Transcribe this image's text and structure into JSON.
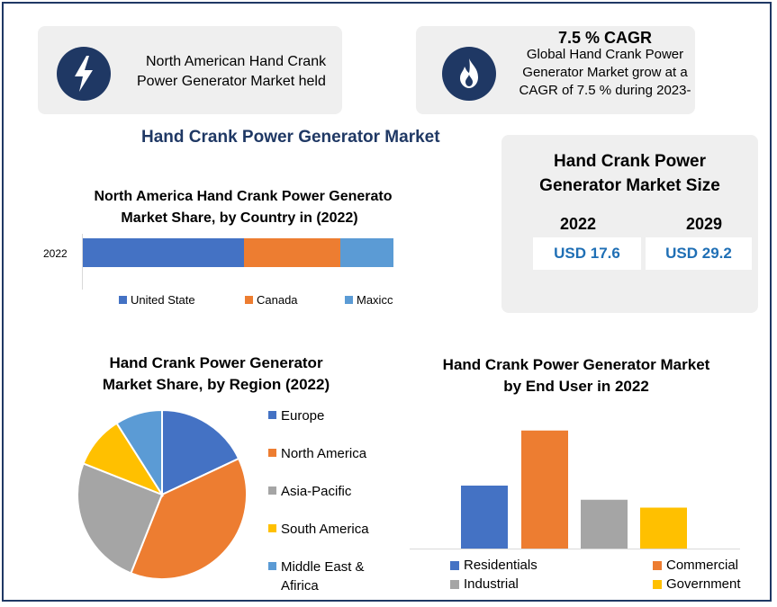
{
  "cards": {
    "north_america": {
      "text_line1": "North American Hand Crank",
      "text_line2": "Power Generator Market held",
      "icon": "lightning-bolt-icon"
    },
    "cagr": {
      "title": "7.5 % CAGR",
      "line1": "Global Hand Crank Power",
      "line2": "Generator Market grow at a",
      "line3": "CAGR of 7.5 % during 2023-",
      "icon": "flame-icon"
    }
  },
  "main_title": "Hand Crank Power Generator Market",
  "market_size": {
    "title_line1": "Hand Crank Power",
    "title_line2": "Generator Market Size",
    "years": [
      "2022",
      "2029"
    ],
    "values": [
      "USD 17.6",
      "USD 29.2"
    ]
  },
  "chart_data": [
    {
      "type": "bar",
      "orientation": "horizontal-stacked",
      "title_line1": "North America Hand Crank Power Generato",
      "title_line2": "Market Share, by Country in (2022)",
      "categories": [
        "2022"
      ],
      "series": [
        {
          "name": "United State",
          "values": [
            52
          ],
          "color": "#4472c4"
        },
        {
          "name": "Canada",
          "values": [
            31
          ],
          "color": "#ed7d31"
        },
        {
          "name": "Maxicc",
          "values": [
            17
          ],
          "color": "#5b9bd5"
        }
      ]
    },
    {
      "type": "pie",
      "title_line1": "Hand Crank Power Generator",
      "title_line2": "Market Share, by Region (2022)",
      "slices": [
        {
          "name": "Europe",
          "value": 18,
          "color": "#4472c4"
        },
        {
          "name": "North America",
          "value": 38,
          "color": "#ed7d31"
        },
        {
          "name": "Asia-Pacific",
          "value": 25,
          "color": "#a5a5a5"
        },
        {
          "name": "South America",
          "value": 10,
          "color": "#ffc000"
        },
        {
          "name": "Middle East & Afirica",
          "value": 9,
          "color": "#5b9bd5"
        }
      ],
      "legend_line2": "Afirica"
    },
    {
      "type": "bar",
      "title_line1": "Hand Crank Power Generator Market",
      "title_line2": "by End User in 2022",
      "categories": [
        "Residentials",
        "Commercial",
        "Industrial",
        "Government"
      ],
      "values": [
        40,
        75,
        31,
        26
      ],
      "colors": [
        "#4472c4",
        "#ed7d31",
        "#a5a5a5",
        "#ffc000"
      ],
      "ylim": [
        0,
        80
      ]
    }
  ]
}
